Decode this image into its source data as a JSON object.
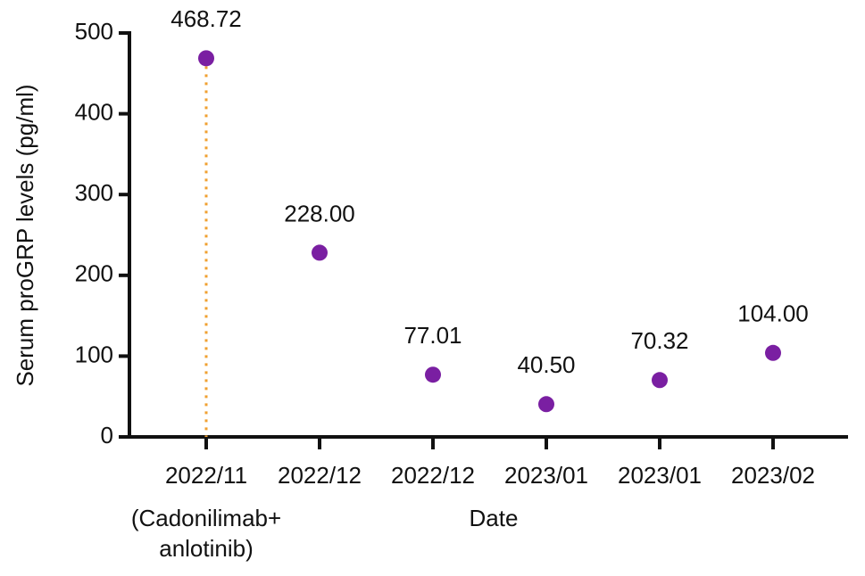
{
  "chart_data": {
    "type": "dot",
    "x_label": "Date",
    "y_label": "Serum proGRP levels (pg/ml)",
    "categories": [
      "2022/11",
      "2022/12",
      "2022/12",
      "2023/01",
      "2023/01",
      "2023/02"
    ],
    "values": [
      468.72,
      228,
      77.01,
      40.5,
      70.32,
      104
    ],
    "value_labels": [
      "468.72",
      "228.00",
      "77.01",
      "40.50",
      "70.32",
      "104.00"
    ],
    "color": "#7a1fa2",
    "drop_line_color": "#f0a030",
    "annotation": [
      "(Cadonilimab+",
      "anlotinib)"
    ],
    "ylim": [
      0,
      500
    ],
    "yticks": [
      0,
      100,
      200,
      300,
      400,
      500
    ]
  }
}
